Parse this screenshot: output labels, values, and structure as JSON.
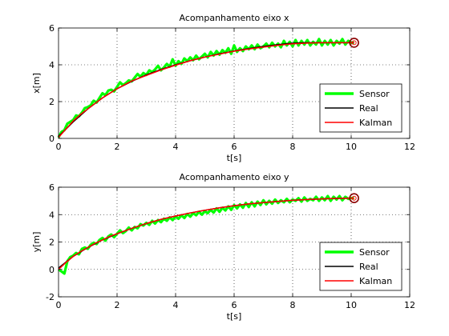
{
  "figure": {
    "background": "#ffffff"
  },
  "chart_data": [
    {
      "type": "line",
      "title": "Acompanhamento eixo x",
      "xlabel": "t[s]",
      "ylabel": "x[m]",
      "xlim": [
        0,
        12
      ],
      "ylim": [
        0,
        6
      ],
      "xticks": [
        0,
        2,
        4,
        6,
        8,
        10,
        12
      ],
      "yticks": [
        0,
        2,
        4,
        6
      ],
      "grid": true,
      "legend_position": "bottom-right",
      "series": [
        {
          "name": "Sensor",
          "color": "#00ff00",
          "x": [
            0,
            0.1,
            0.2,
            0.3,
            0.4,
            0.5,
            0.6,
            0.7,
            0.8,
            0.9,
            1.0,
            1.1,
            1.2,
            1.3,
            1.4,
            1.5,
            1.6,
            1.7,
            1.8,
            1.9,
            2.0,
            2.1,
            2.2,
            2.3,
            2.4,
            2.5,
            2.6,
            2.7,
            2.8,
            2.9,
            3.0,
            3.1,
            3.2,
            3.3,
            3.4,
            3.5,
            3.6,
            3.7,
            3.8,
            3.9,
            4.0,
            4.1,
            4.2,
            4.3,
            4.4,
            4.5,
            4.6,
            4.7,
            4.8,
            4.9,
            5.0,
            5.1,
            5.2,
            5.3,
            5.4,
            5.5,
            5.6,
            5.7,
            5.8,
            5.9,
            6.0,
            6.1,
            6.2,
            6.3,
            6.4,
            6.5,
            6.6,
            6.7,
            6.8,
            6.9,
            7.0,
            7.1,
            7.2,
            7.3,
            7.4,
            7.5,
            7.6,
            7.7,
            7.8,
            7.9,
            8.0,
            8.1,
            8.2,
            8.3,
            8.4,
            8.5,
            8.6,
            8.7,
            8.8,
            8.9,
            9.0,
            9.1,
            9.2,
            9.3,
            9.4,
            9.5,
            9.6,
            9.7,
            9.8,
            9.9,
            10.0,
            10.1
          ],
          "y": [
            0.05,
            0.35,
            0.45,
            0.8,
            0.9,
            1.0,
            1.25,
            1.2,
            1.4,
            1.65,
            1.7,
            1.8,
            2.05,
            1.95,
            2.2,
            2.45,
            2.35,
            2.6,
            2.65,
            2.55,
            2.8,
            3.05,
            2.9,
            3.0,
            3.15,
            3.1,
            3.3,
            3.5,
            3.35,
            3.55,
            3.45,
            3.7,
            3.6,
            3.75,
            3.95,
            3.7,
            3.85,
            4.05,
            3.9,
            4.3,
            3.95,
            4.2,
            4.05,
            4.35,
            4.2,
            4.4,
            4.25,
            4.5,
            4.3,
            4.45,
            4.6,
            4.4,
            4.7,
            4.5,
            4.75,
            4.55,
            4.8,
            4.65,
            4.9,
            4.6,
            5.05,
            4.7,
            4.9,
            4.75,
            5.0,
            4.85,
            5.05,
            4.85,
            5.1,
            4.9,
            5.0,
            5.15,
            4.95,
            5.2,
            5.0,
            5.15,
            4.95,
            5.3,
            5.05,
            5.25,
            5.0,
            5.35,
            5.05,
            5.3,
            5.1,
            5.35,
            5.05,
            5.25,
            5.1,
            5.4,
            5.05,
            5.3,
            5.1,
            5.35,
            5.05,
            5.3,
            5.15,
            5.4,
            5.1,
            5.3,
            5.2,
            5.2
          ]
        },
        {
          "name": "Real",
          "color": "#000000",
          "x": [
            0,
            0.5,
            1.0,
            1.5,
            2.0,
            2.5,
            3.0,
            3.5,
            4.0,
            4.5,
            5.0,
            5.5,
            6.0,
            6.5,
            7.0,
            7.5,
            8.0,
            8.5,
            9.0,
            9.5,
            10.0,
            10.1
          ],
          "y": [
            0.1,
            0.9,
            1.6,
            2.2,
            2.7,
            3.1,
            3.45,
            3.75,
            4.0,
            4.22,
            4.42,
            4.6,
            4.75,
            4.88,
            5.0,
            5.1,
            5.18,
            5.2,
            5.2,
            5.2,
            5.2,
            5.2
          ]
        },
        {
          "name": "Kalman",
          "color": "#ff0000",
          "x": [
            0,
            0.25,
            0.5,
            0.75,
            1.0,
            1.25,
            1.5,
            1.75,
            2.0,
            2.5,
            3.0,
            3.5,
            4.0,
            4.5,
            5.0,
            5.5,
            6.0,
            6.5,
            7.0,
            7.5,
            8.0,
            8.5,
            9.0,
            9.5,
            10.0,
            10.1
          ],
          "y": [
            0.05,
            0.5,
            0.95,
            1.3,
            1.6,
            1.9,
            2.2,
            2.45,
            2.7,
            3.12,
            3.42,
            3.72,
            3.98,
            4.22,
            4.42,
            4.58,
            4.74,
            4.86,
            4.96,
            5.06,
            5.14,
            5.18,
            5.2,
            5.2,
            5.2,
            5.2
          ]
        }
      ],
      "end_marker": {
        "x": 10.1,
        "y": 5.2,
        "color": "#8b0000"
      }
    },
    {
      "type": "line",
      "title": "Acompanhamento eixo y",
      "xlabel": "t[s]",
      "ylabel": "y[m]",
      "xlim": [
        0,
        12
      ],
      "ylim": [
        -2,
        6
      ],
      "xticks": [
        0,
        2,
        4,
        6,
        8,
        10,
        12
      ],
      "yticks": [
        -2,
        0,
        2,
        4,
        6
      ],
      "grid": true,
      "legend_position": "bottom-right",
      "series": [
        {
          "name": "Sensor",
          "color": "#00ff00",
          "x": [
            0,
            0.1,
            0.2,
            0.3,
            0.4,
            0.5,
            0.6,
            0.7,
            0.8,
            0.9,
            1.0,
            1.1,
            1.2,
            1.3,
            1.4,
            1.5,
            1.6,
            1.7,
            1.8,
            1.9,
            2.0,
            2.1,
            2.2,
            2.3,
            2.4,
            2.5,
            2.6,
            2.7,
            2.8,
            2.9,
            3.0,
            3.1,
            3.2,
            3.3,
            3.4,
            3.5,
            3.6,
            3.7,
            3.8,
            3.9,
            4.0,
            4.1,
            4.2,
            4.3,
            4.4,
            4.5,
            4.6,
            4.7,
            4.8,
            4.9,
            5.0,
            5.1,
            5.2,
            5.3,
            5.4,
            5.5,
            5.6,
            5.7,
            5.8,
            5.9,
            6.0,
            6.1,
            6.2,
            6.3,
            6.4,
            6.5,
            6.6,
            6.7,
            6.8,
            6.9,
            7.0,
            7.1,
            7.2,
            7.3,
            7.4,
            7.5,
            7.6,
            7.7,
            7.8,
            7.9,
            8.0,
            8.1,
            8.2,
            8.3,
            8.4,
            8.5,
            8.6,
            8.7,
            8.8,
            8.9,
            9.0,
            9.1,
            9.2,
            9.3,
            9.4,
            9.5,
            9.6,
            9.7,
            9.8,
            9.9,
            10.0,
            10.1
          ],
          "y": [
            0.0,
            -0.15,
            -0.3,
            0.6,
            0.9,
            1.0,
            1.2,
            1.1,
            1.5,
            1.6,
            1.5,
            1.8,
            1.95,
            1.85,
            2.15,
            2.3,
            2.1,
            2.4,
            2.55,
            2.35,
            2.6,
            2.85,
            2.65,
            2.8,
            3.05,
            2.85,
            3.1,
            3.0,
            3.3,
            3.2,
            3.4,
            3.25,
            3.55,
            3.35,
            3.6,
            3.45,
            3.7,
            3.55,
            3.8,
            3.6,
            3.85,
            3.7,
            3.95,
            3.75,
            4.05,
            3.85,
            4.1,
            3.95,
            4.2,
            4.0,
            4.25,
            4.1,
            4.35,
            4.15,
            4.45,
            4.2,
            4.5,
            4.3,
            4.6,
            4.35,
            4.7,
            4.45,
            4.75,
            4.5,
            4.85,
            4.55,
            4.9,
            4.6,
            4.95,
            4.7,
            5.05,
            4.75,
            5.0,
            4.8,
            5.1,
            4.85,
            5.05,
            4.9,
            5.15,
            4.9,
            5.1,
            5.0,
            5.2,
            4.95,
            5.25,
            5.0,
            5.15,
            5.05,
            5.3,
            5.0,
            5.25,
            5.05,
            5.35,
            5.0,
            5.3,
            5.1,
            5.35,
            5.05,
            5.3,
            5.15,
            5.2,
            5.2
          ]
        },
        {
          "name": "Real",
          "color": "#000000",
          "x": [
            0,
            0.5,
            1.0,
            1.5,
            2.0,
            2.5,
            3.0,
            3.5,
            4.0,
            4.5,
            5.0,
            5.5,
            6.0,
            6.5,
            7.0,
            7.5,
            8.0,
            8.5,
            9.0,
            9.5,
            10.0,
            10.1
          ],
          "y": [
            0.1,
            0.95,
            1.6,
            2.15,
            2.6,
            3.0,
            3.35,
            3.65,
            3.9,
            4.12,
            4.32,
            4.5,
            4.65,
            4.78,
            4.88,
            4.96,
            5.04,
            5.1,
            5.15,
            5.18,
            5.2,
            5.2
          ]
        },
        {
          "name": "Kalman",
          "color": "#ff0000",
          "x": [
            0,
            0.25,
            0.5,
            0.75,
            1.0,
            1.25,
            1.5,
            1.75,
            2.0,
            2.5,
            3.0,
            3.5,
            4.0,
            4.5,
            5.0,
            5.5,
            6.0,
            6.5,
            7.0,
            7.5,
            8.0,
            8.5,
            9.0,
            9.5,
            10.0,
            10.1
          ],
          "y": [
            0.0,
            0.5,
            0.95,
            1.3,
            1.6,
            1.9,
            2.15,
            2.4,
            2.6,
            3.0,
            3.35,
            3.65,
            3.9,
            4.12,
            4.32,
            4.5,
            4.65,
            4.78,
            4.88,
            4.96,
            5.04,
            5.1,
            5.15,
            5.18,
            5.2,
            5.2
          ]
        }
      ],
      "end_marker": {
        "x": 10.1,
        "y": 5.2,
        "color": "#8b0000"
      }
    }
  ]
}
